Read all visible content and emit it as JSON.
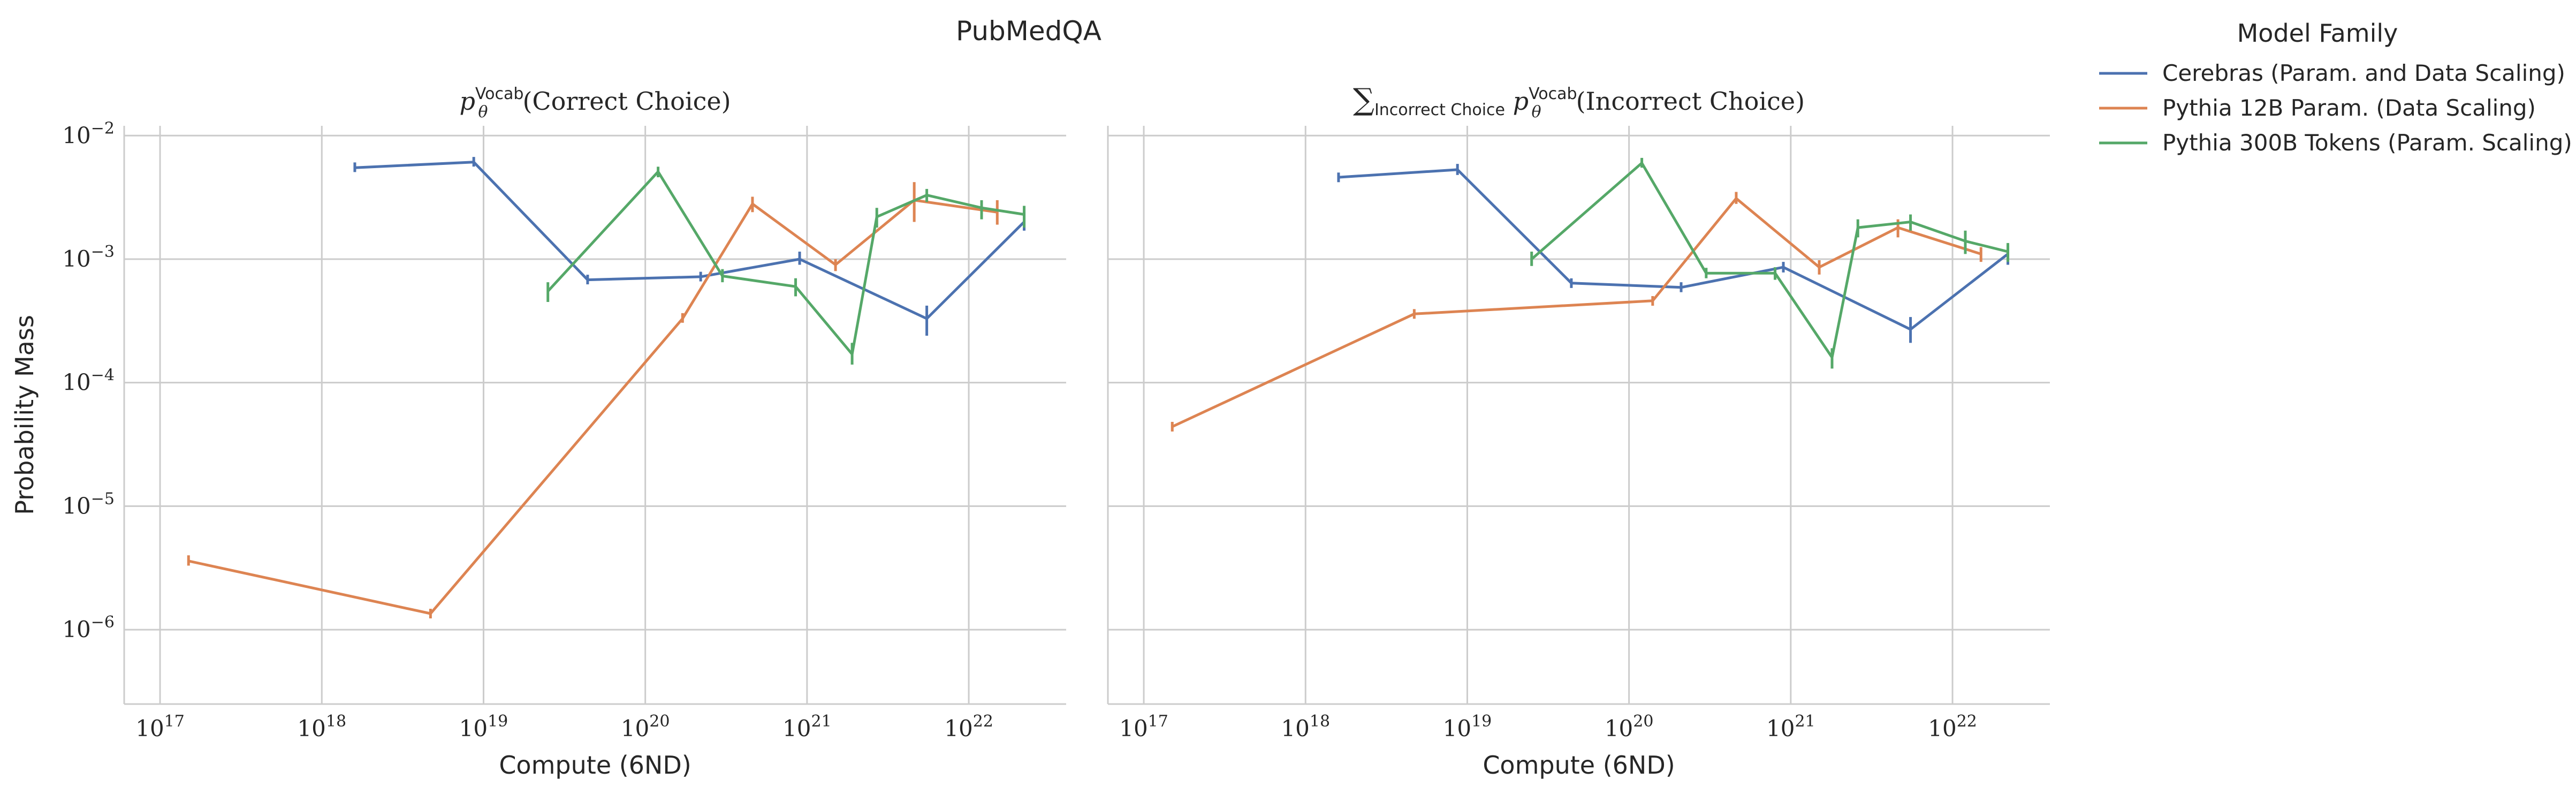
{
  "chart_data": {
    "type": "line",
    "title": "PubMedQA",
    "legend": {
      "title": "Model Family",
      "placement": "outside-top-right",
      "entries": [
        {
          "label": "Cerebras (Param. and Data Scaling)",
          "color": "#4c72b0"
        },
        {
          "label": "Pythia 12B Param. (Data Scaling)",
          "color": "#dd8452"
        },
        {
          "label": "Pythia 300B Tokens (Param. Scaling)",
          "color": "#55a868"
        }
      ]
    },
    "ylabel": "Probability Mass",
    "xscale": "log",
    "yscale": "log",
    "xlim": [
      6e+16,
      4e+22
    ],
    "ylim": [
      2.5e-07,
      0.012
    ],
    "grid": true,
    "xtick_labels": [
      "10^17",
      "10^18",
      "10^19",
      "10^20",
      "10^21",
      "10^22"
    ],
    "ytick_labels": [
      "10^-6",
      "10^-5",
      "10^-4",
      "10^-3",
      "10^-2"
    ],
    "xtick_values": [
      1e+17,
      1e+18,
      1e+19,
      1e+20,
      1e+21,
      1e+22
    ],
    "ytick_values": [
      1e-06,
      1e-05,
      0.0001,
      0.001,
      0.01
    ],
    "panels": [
      {
        "title_prefix": "p",
        "title_sub": "θ",
        "title_sup": "Vocab",
        "title_text": "(Correct Choice)",
        "sum_sub": "",
        "xlabel": "Compute (6ND)",
        "series": [
          {
            "name": "Cerebras (Param. and Data Scaling)",
            "color": "#4c72b0",
            "x": [
              1.6e+18,
              8.7e+18,
              4.4e+19,
              2.2e+20,
              9e+20,
              5.5e+21,
              2.2e+22
            ],
            "y": [
              0.0055,
              0.0061,
              0.00068,
              0.00072,
              0.001,
              0.00033,
              0.002
            ],
            "err_lo": [
              0.0053,
              0.0058,
              0.00064,
              0.00066,
              0.0009,
              0.00024,
              0.0017
            ],
            "err_hi": [
              0.0058,
              0.0065,
              0.00073,
              0.00079,
              0.00115,
              0.00042,
              0.0024
            ]
          },
          {
            "name": "Pythia 12B Param. (Data Scaling)",
            "color": "#dd8452",
            "x": [
              1.5e+17,
              4.7e+18,
              1.7e+20,
              4.6e+20,
              1.5e+21,
              4.6e+21,
              1.5e+22
            ],
            "y": [
              3.6e-06,
              1.35e-06,
              0.00033,
              0.0028,
              0.0009,
              0.003,
              0.0024
            ],
            "err_lo": [
              3.3e-06,
              1.35e-06,
              0.00031,
              0.0024,
              0.0008,
              0.002,
              0.0019
            ],
            "err_hi": [
              4e-06,
              1.35e-06,
              0.00036,
              0.0032,
              0.001,
              0.0042,
              0.003
            ]
          },
          {
            "name": "Pythia 300B Tokens (Param. Scaling)",
            "color": "#55a868",
            "x": [
              2.5e+19,
              1.2e+20,
              3e+20,
              8.5e+20,
              1.9e+21,
              2.7e+21,
              5.5e+21,
              1.2e+22,
              2.2e+22
            ],
            "y": [
              0.00055,
              0.0051,
              0.00073,
              0.0006,
              0.00017,
              0.0022,
              0.0033,
              0.0026,
              0.0023
            ],
            "err_lo": [
              0.00045,
              0.0046,
              0.00065,
              0.0005,
              0.00014,
              0.0018,
              0.0029,
              0.0021,
              0.0018
            ],
            "err_hi": [
              0.00065,
              0.0056,
              0.00083,
              0.0007,
              0.00021,
              0.0026,
              0.0037,
              0.003,
              0.0027
            ]
          }
        ]
      },
      {
        "title_prefix": "p",
        "title_sub": "θ",
        "title_sup": "Vocab",
        "title_text": "(Incorrect Choice)",
        "sum_sub": "Incorrect Choice",
        "xlabel": "Compute (6ND)",
        "series": [
          {
            "name": "Cerebras (Param. and Data Scaling)",
            "color": "#4c72b0",
            "x": [
              1.6e+18,
              8.7e+18,
              4.4e+19,
              2.1e+20,
              9e+20,
              5.5e+21,
              2.2e+22
            ],
            "y": [
              0.0046,
              0.0053,
              0.00064,
              0.00059,
              0.00086,
              0.00027,
              0.0011
            ],
            "err_lo": [
              0.0043,
              0.0048,
              0.0006,
              0.00054,
              0.00078,
              0.00021,
              0.0009
            ],
            "err_hi": [
              0.0049,
              0.0059,
              0.00068,
              0.00065,
              0.00095,
              0.00034,
              0.0013
            ]
          },
          {
            "name": "Pythia 12B Param. (Data Scaling)",
            "color": "#dd8452",
            "x": [
              1.5e+17,
              4.7e+18,
              1.4e+20,
              4.6e+20,
              1.5e+21,
              4.6e+21,
              1.5e+22
            ],
            "y": [
              4.4e-05,
              0.00036,
              0.00046,
              0.0031,
              0.00086,
              0.0018,
              0.0011
            ],
            "err_lo": [
              4.4e-05,
              0.00036,
              0.00043,
              0.0028,
              0.00075,
              0.0015,
              0.00095
            ],
            "err_hi": [
              4.4e-05,
              0.00036,
              0.00049,
              0.0035,
              0.00098,
              0.0021,
              0.00125
            ]
          },
          {
            "name": "Pythia 300B Tokens (Param. Scaling)",
            "color": "#55a868",
            "x": [
              2.5e+19,
              1.2e+20,
              3e+20,
              8e+20,
              1.8e+21,
              2.6e+21,
              5.5e+21,
              1.2e+22,
              2.2e+22
            ],
            "y": [
              0.001,
              0.006,
              0.00077,
              0.00077,
              0.00016,
              0.0018,
              0.002,
              0.0014,
              0.00115
            ],
            "err_lo": [
              0.00088,
              0.0055,
              0.0007,
              0.00068,
              0.00013,
              0.0015,
              0.0017,
              0.0011,
              0.00095
            ],
            "err_hi": [
              0.00115,
              0.0066,
              0.00085,
              0.00086,
              0.00019,
              0.0021,
              0.0023,
              0.0017,
              0.00135
            ]
          }
        ]
      }
    ]
  }
}
